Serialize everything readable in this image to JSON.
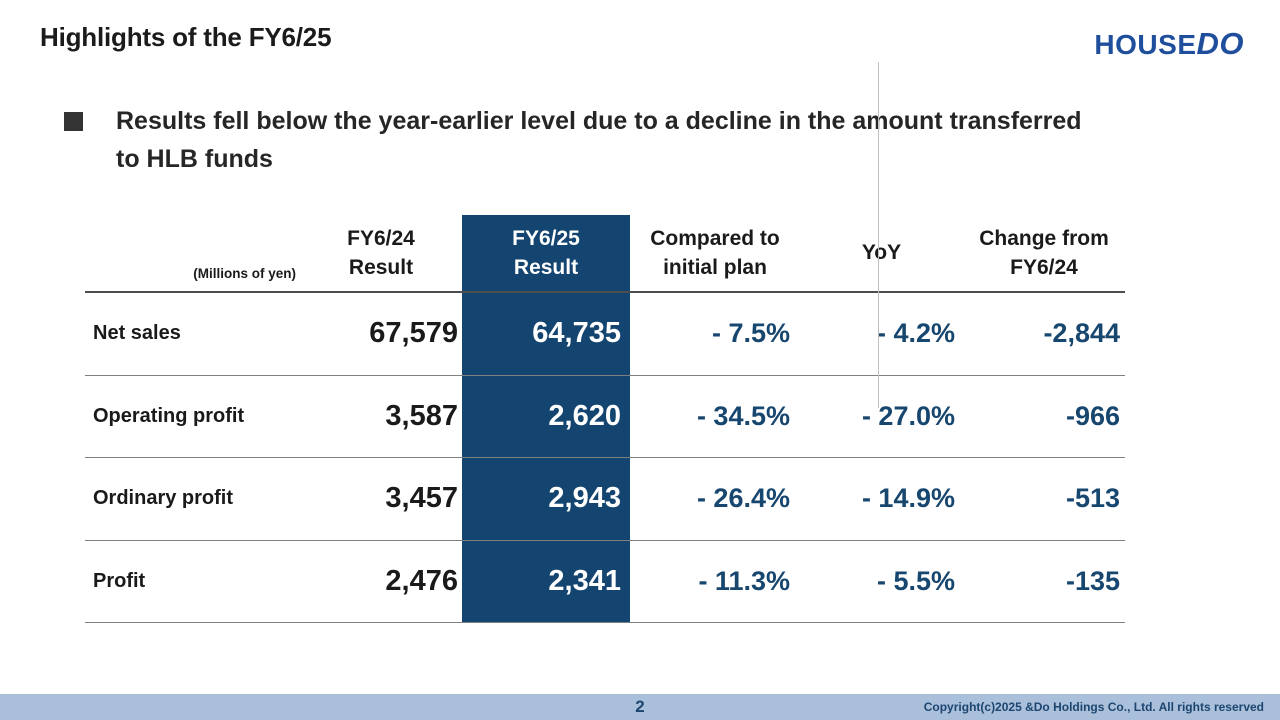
{
  "slide": {
    "title": "Highlights of the FY6/25",
    "logo": {
      "house": "HOUSE",
      "do": "DO"
    },
    "bullet_text": "Results fell below the year-earlier level due to a decline in the amount transferred to HLB funds"
  },
  "table": {
    "unit_note": "(Millions of yen)",
    "headers": {
      "fy624": {
        "line1": "FY6/24",
        "line2": "Result"
      },
      "fy625": {
        "line1": "FY6/25",
        "line2": "Result"
      },
      "vs_plan": {
        "line1": "Compared to",
        "line2": "initial plan"
      },
      "yoy": "YoY",
      "change": {
        "line1": "Change from",
        "line2": "FY6/24"
      }
    },
    "rows": [
      {
        "label": "Net sales",
        "fy624": "67,579",
        "fy625": "64,735",
        "vs_plan": "- 7.5%",
        "yoy": "- 4.2%",
        "change": "-2,844"
      },
      {
        "label": "Operating profit",
        "fy624": "3,587",
        "fy625": "2,620",
        "vs_plan": "- 34.5%",
        "yoy": "- 27.0%",
        "change": "-966"
      },
      {
        "label": "Ordinary profit",
        "fy624": "3,457",
        "fy625": "2,943",
        "vs_plan": "- 26.4%",
        "yoy": "- 14.9%",
        "change": "-513"
      },
      {
        "label": "Profit",
        "fy624": "2,476",
        "fy625": "2,341",
        "vs_plan": "- 11.3%",
        "yoy": "- 5.5%",
        "change": "-135"
      }
    ]
  },
  "footer": {
    "page_number": "2",
    "copyright": "Copyright(c)2025 &Do Holdings Co., Ltd. All rights reserved"
  },
  "colors": {
    "highlight_column_navy": "#134570",
    "value_text_blue": "#17466f",
    "logo_blue": "#1f4e9c",
    "footer_bar_blue": "#a9bfda",
    "footer_text_navy": "#1c4670"
  }
}
